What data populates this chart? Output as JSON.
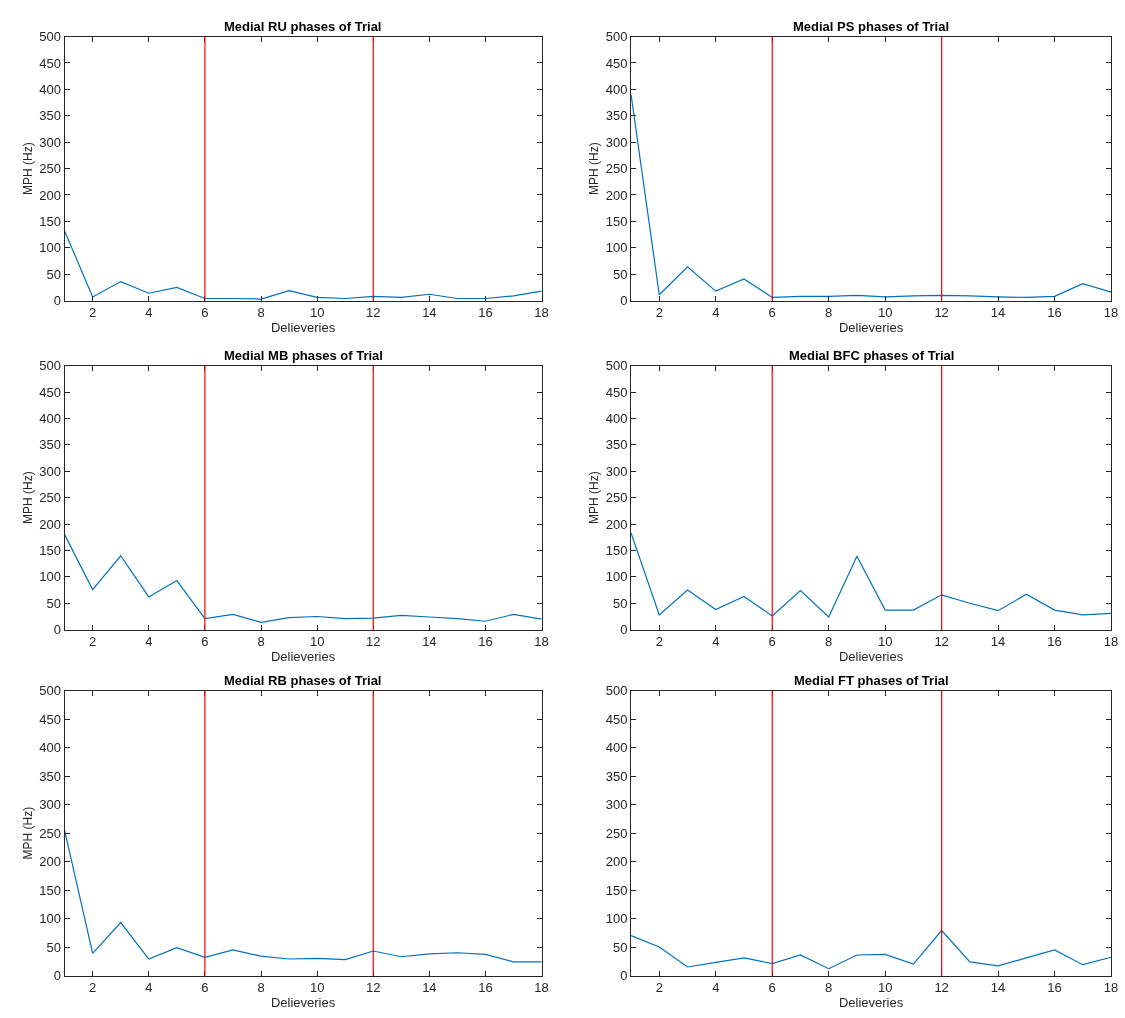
{
  "chart_data": [
    {
      "type": "line",
      "title": "Medial RU phases of Trial",
      "xlabel": "Delieveries",
      "ylabel": "MPH (Hz)",
      "x": [
        1,
        2,
        3,
        4,
        5,
        6,
        7,
        8,
        9,
        10,
        11,
        12,
        13,
        14,
        15,
        16,
        17,
        18
      ],
      "series": [
        {
          "color": "#0072bd",
          "values": [
            132,
            7,
            36,
            14,
            25,
            4,
            4,
            3,
            19,
            6,
            4,
            8,
            6,
            12,
            4,
            4,
            9,
            18
          ]
        }
      ],
      "xlim": [
        1,
        18
      ],
      "xticks": [
        2,
        4,
        6,
        8,
        10,
        12,
        14,
        16,
        18
      ],
      "ylim": [
        0,
        500
      ],
      "yticks": [
        0,
        50,
        100,
        150,
        200,
        250,
        300,
        350,
        400,
        450,
        500
      ],
      "ref_lines": [
        {
          "axis": "x",
          "value": 6,
          "color": "#ff0000"
        },
        {
          "axis": "x",
          "value": 12,
          "color": "#ff0000"
        }
      ]
    },
    {
      "type": "line",
      "title": "Medial PS phases of Trial",
      "xlabel": "Delieveries",
      "ylabel": "MPH (Hz)",
      "x": [
        1,
        2,
        3,
        4,
        5,
        6,
        7,
        8,
        9,
        10,
        11,
        12,
        13,
        14,
        15,
        16,
        17,
        18
      ],
      "series": [
        {
          "color": "#0072bd",
          "values": [
            390,
            11,
            64,
            18,
            41,
            6,
            8,
            8,
            10,
            7,
            9,
            10,
            9,
            7,
            6,
            8,
            32,
            16
          ]
        }
      ],
      "xlim": [
        1,
        18
      ],
      "xticks": [
        2,
        4,
        6,
        8,
        10,
        12,
        14,
        16,
        18
      ],
      "ylim": [
        0,
        500
      ],
      "yticks": [
        0,
        50,
        100,
        150,
        200,
        250,
        300,
        350,
        400,
        450,
        500
      ],
      "ref_lines": [
        {
          "axis": "x",
          "value": 6,
          "color": "#ff0000"
        },
        {
          "axis": "x",
          "value": 12,
          "color": "#ff0000"
        }
      ]
    },
    {
      "type": "line",
      "title": "Medial MB phases of Trial",
      "xlabel": "Delieveries",
      "ylabel": "MPH (Hz)",
      "x": [
        1,
        2,
        3,
        4,
        5,
        6,
        7,
        8,
        9,
        10,
        11,
        12,
        13,
        14,
        15,
        16,
        17,
        18
      ],
      "series": [
        {
          "color": "#0072bd",
          "values": [
            180,
            76,
            140,
            62,
            93,
            21,
            29,
            14,
            23,
            25,
            21,
            22,
            27,
            24,
            21,
            16,
            29,
            20
          ]
        }
      ],
      "xlim": [
        1,
        18
      ],
      "xticks": [
        2,
        4,
        6,
        8,
        10,
        12,
        14,
        16,
        18
      ],
      "ylim": [
        0,
        500
      ],
      "yticks": [
        0,
        50,
        100,
        150,
        200,
        250,
        300,
        350,
        400,
        450,
        500
      ],
      "ref_lines": [
        {
          "axis": "x",
          "value": 6,
          "color": "#ff0000"
        },
        {
          "axis": "x",
          "value": 12,
          "color": "#ff0000"
        }
      ]
    },
    {
      "type": "line",
      "title": "Medial BFC phases of Trial",
      "xlabel": "Delieveries",
      "ylabel": "MPH (Hz)",
      "x": [
        1,
        2,
        3,
        4,
        5,
        6,
        7,
        8,
        9,
        10,
        11,
        12,
        13,
        14,
        15,
        16,
        17,
        18
      ],
      "series": [
        {
          "color": "#0072bd",
          "values": [
            183,
            28,
            75,
            38,
            63,
            26,
            74,
            24,
            139,
            37,
            37,
            66,
            50,
            36,
            67,
            37,
            28,
            31
          ]
        }
      ],
      "xlim": [
        1,
        18
      ],
      "xticks": [
        2,
        4,
        6,
        8,
        10,
        12,
        14,
        16,
        18
      ],
      "ylim": [
        0,
        500
      ],
      "yticks": [
        0,
        50,
        100,
        150,
        200,
        250,
        300,
        350,
        400,
        450,
        500
      ],
      "ref_lines": [
        {
          "axis": "x",
          "value": 6,
          "color": "#ff0000"
        },
        {
          "axis": "x",
          "value": 12,
          "color": "#ff0000"
        }
      ]
    },
    {
      "type": "line",
      "title": "Medial RB phases of Trial",
      "xlabel": "Delieveries",
      "ylabel": "MPH (Hz)",
      "x": [
        1,
        2,
        3,
        4,
        5,
        6,
        7,
        8,
        9,
        10,
        11,
        12,
        13,
        14,
        15,
        16,
        17,
        18
      ],
      "series": [
        {
          "color": "#0072bd",
          "values": [
            255,
            39,
            93,
            29,
            49,
            32,
            45,
            34,
            29,
            30,
            28,
            43,
            33,
            38,
            40,
            37,
            24,
            24
          ]
        }
      ],
      "xlim": [
        1,
        18
      ],
      "xticks": [
        2,
        4,
        6,
        8,
        10,
        12,
        14,
        16,
        18
      ],
      "ylim": [
        0,
        500
      ],
      "yticks": [
        0,
        50,
        100,
        150,
        200,
        250,
        300,
        350,
        400,
        450,
        500
      ],
      "ref_lines": [
        {
          "axis": "x",
          "value": 6,
          "color": "#ff0000"
        },
        {
          "axis": "x",
          "value": 12,
          "color": "#ff0000"
        }
      ]
    },
    {
      "type": "line",
      "title": "Medial FT phases of Trial",
      "xlabel": "Delieveries",
      "x": [
        1,
        2,
        3,
        4,
        5,
        6,
        7,
        8,
        9,
        10,
        11,
        12,
        13,
        14,
        15,
        16,
        17,
        18
      ],
      "series": [
        {
          "color": "#0072bd",
          "values": [
            70,
            50,
            15,
            23,
            31,
            21,
            36,
            12,
            36,
            37,
            20,
            79,
            24,
            17,
            31,
            45,
            19,
            32
          ]
        }
      ],
      "xlim": [
        1,
        18
      ],
      "xticks": [
        2,
        4,
        6,
        8,
        10,
        12,
        14,
        16,
        18
      ],
      "ylim": [
        0,
        500
      ],
      "yticks": [
        0,
        50,
        100,
        150,
        200,
        250,
        300,
        350,
        400,
        450,
        500
      ],
      "ref_lines": [
        {
          "axis": "x",
          "value": 6,
          "color": "#ff0000"
        },
        {
          "axis": "x",
          "value": 12,
          "color": "#ff0000"
        }
      ]
    }
  ]
}
